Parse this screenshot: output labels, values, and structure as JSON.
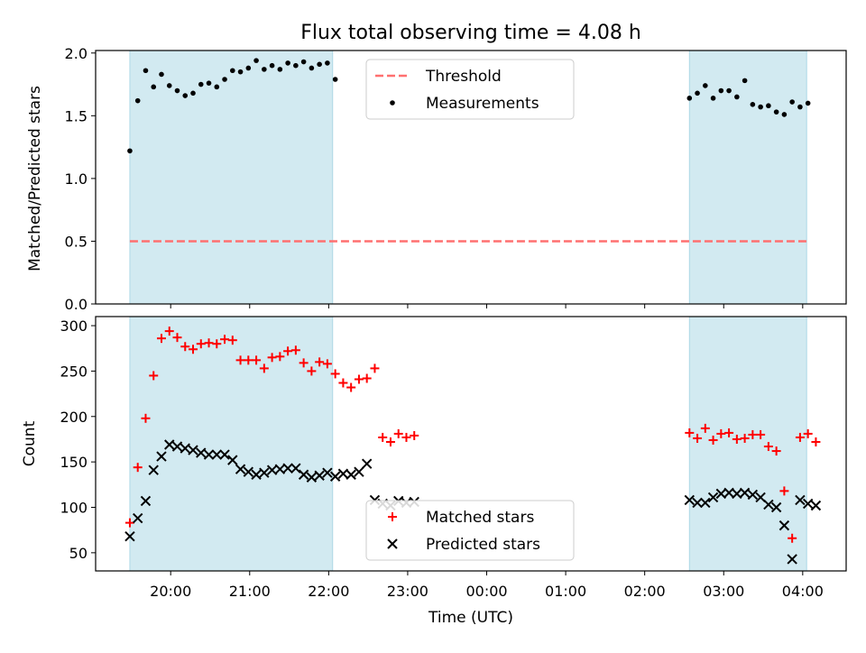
{
  "figure": {
    "title": "Flux total observing time = 4.08 h",
    "xlabel": "Time (UTC)",
    "x_ticks": [
      "20:00",
      "21:00",
      "22:00",
      "23:00",
      "00:00",
      "01:00",
      "02:00",
      "03:00",
      "04:00"
    ]
  },
  "colors": {
    "shade": "#add8e6",
    "threshold": "#ff7070",
    "matched": "#ff0000",
    "predicted": "#000000",
    "measurement": "#000000"
  },
  "chart_data": [
    {
      "type": "scatter",
      "ylabel": "Matched/Predicted stars",
      "ylim": [
        0,
        2.02
      ],
      "yticks": [
        "0.0",
        "0.5",
        "1.0",
        "1.5",
        "2.0"
      ],
      "xlim_hours": [
        19.05,
        28.55
      ],
      "shaded_intervals": [
        [
          "19:29",
          "22:03"
        ],
        [
          "02:34",
          "04:03"
        ]
      ],
      "legend": {
        "position": "top-center",
        "entries": [
          "Threshold",
          "Measurements"
        ]
      },
      "threshold": {
        "name": "Threshold",
        "value": 0.5
      },
      "series": [
        {
          "name": "Measurements",
          "x": [
            "19:29",
            "19:35",
            "19:41",
            "19:47",
            "19:53",
            "19:59",
            "20:05",
            "20:11",
            "20:17",
            "20:23",
            "20:29",
            "20:35",
            "20:41",
            "20:47",
            "20:53",
            "20:59",
            "21:05",
            "21:11",
            "21:17",
            "21:23",
            "21:29",
            "21:35",
            "21:41",
            "21:47",
            "21:53",
            "21:59",
            "22:05",
            "02:34",
            "02:40",
            "02:46",
            "02:52",
            "02:58",
            "03:04",
            "03:10",
            "03:16",
            "03:22",
            "03:28",
            "03:34",
            "03:40",
            "03:46",
            "03:52",
            "03:58",
            "04:04"
          ],
          "values": [
            1.22,
            1.62,
            1.86,
            1.73,
            1.83,
            1.74,
            1.7,
            1.66,
            1.68,
            1.75,
            1.76,
            1.73,
            1.79,
            1.86,
            1.85,
            1.88,
            1.94,
            1.87,
            1.9,
            1.87,
            1.92,
            1.9,
            1.93,
            1.88,
            1.91,
            1.92,
            1.79,
            1.64,
            1.68,
            1.74,
            1.64,
            1.7,
            1.7,
            1.65,
            1.78,
            1.59,
            1.57,
            1.58,
            1.53,
            1.51,
            1.61,
            1.57,
            1.6
          ]
        }
      ]
    },
    {
      "type": "scatter",
      "ylabel": "Count",
      "ylim": [
        30,
        310
      ],
      "yticks": [
        "50",
        "100",
        "150",
        "200",
        "250",
        "300"
      ],
      "xlim_hours": [
        19.05,
        28.55
      ],
      "shaded_intervals": [
        [
          "19:29",
          "22:03"
        ],
        [
          "02:34",
          "04:03"
        ]
      ],
      "legend": {
        "position": "bottom-center",
        "entries": [
          "Matched stars",
          "Predicted stars"
        ]
      },
      "series": [
        {
          "name": "Matched stars",
          "x": [
            "19:29",
            "19:35",
            "19:41",
            "19:47",
            "19:53",
            "19:59",
            "20:05",
            "20:11",
            "20:17",
            "20:23",
            "20:29",
            "20:35",
            "20:41",
            "20:47",
            "20:53",
            "20:59",
            "21:05",
            "21:11",
            "21:17",
            "21:23",
            "21:29",
            "21:35",
            "21:41",
            "21:47",
            "21:53",
            "21:59",
            "22:05",
            "22:11",
            "22:17",
            "22:23",
            "22:29",
            "22:35",
            "22:41",
            "22:47",
            "22:53",
            "22:59",
            "23:05",
            "02:34",
            "02:40",
            "02:46",
            "02:52",
            "02:58",
            "03:04",
            "03:10",
            "03:16",
            "03:22",
            "03:28",
            "03:34",
            "03:40",
            "03:46",
            "03:52",
            "03:58",
            "04:04",
            "04:10"
          ],
          "values": [
            83,
            144,
            198,
            245,
            286,
            294,
            287,
            277,
            274,
            280,
            281,
            280,
            285,
            284,
            262,
            262,
            262,
            253,
            265,
            266,
            272,
            273,
            259,
            250,
            260,
            258,
            247,
            237,
            232,
            241,
            242,
            253,
            177,
            172,
            181,
            177,
            179,
            182,
            176,
            187,
            174,
            181,
            182,
            175,
            176,
            180,
            180,
            167,
            162,
            118,
            66,
            177,
            181,
            172
          ]
        },
        {
          "name": "Predicted stars",
          "x": [
            "19:29",
            "19:35",
            "19:41",
            "19:47",
            "19:53",
            "19:59",
            "20:05",
            "20:11",
            "20:17",
            "20:23",
            "20:29",
            "20:35",
            "20:41",
            "20:47",
            "20:53",
            "20:59",
            "21:05",
            "21:11",
            "21:17",
            "21:23",
            "21:29",
            "21:35",
            "21:41",
            "21:47",
            "21:53",
            "21:59",
            "22:05",
            "22:11",
            "22:17",
            "22:23",
            "22:29",
            "22:35",
            "22:41",
            "22:47",
            "22:53",
            "22:59",
            "23:05",
            "02:34",
            "02:40",
            "02:46",
            "02:52",
            "02:58",
            "03:04",
            "03:10",
            "03:16",
            "03:22",
            "03:28",
            "03:34",
            "03:40",
            "03:46",
            "03:52",
            "03:58",
            "04:04",
            "04:10"
          ],
          "values": [
            68,
            88,
            107,
            141,
            156,
            169,
            167,
            165,
            163,
            160,
            158,
            158,
            158,
            152,
            142,
            139,
            136,
            138,
            141,
            142,
            143,
            143,
            136,
            133,
            135,
            138,
            134,
            137,
            136,
            139,
            148,
            108,
            104,
            102,
            107,
            105,
            106,
            108,
            105,
            105,
            111,
            115,
            116,
            115,
            116,
            114,
            111,
            103,
            100,
            80,
            43,
            108,
            104,
            102
          ]
        }
      ]
    }
  ]
}
